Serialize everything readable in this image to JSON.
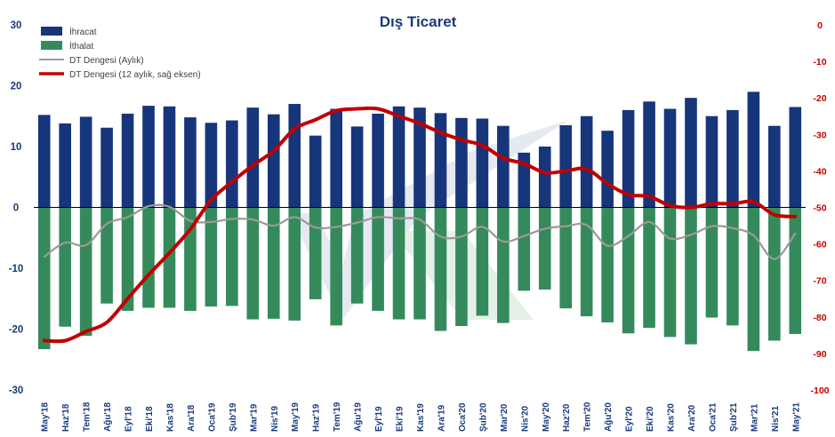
{
  "chart_data": {
    "type": "bar",
    "title": "Dış Ticaret",
    "categories": [
      "May'18",
      "Haz'18",
      "Tem'18",
      "Ağu'18",
      "Eyl'18",
      "Eki'18",
      "Kas'18",
      "Ara'18",
      "Oca'19",
      "Şub'19",
      "Mar'19",
      "Nis'19",
      "May'19",
      "Haz'19",
      "Tem'19",
      "Ağu'19",
      "Eyl'19",
      "Eki'19",
      "Kas'19",
      "Ara'19",
      "Oca'20",
      "Şub'20",
      "Mar'20",
      "Nis'20",
      "May'20",
      "Haz'20",
      "Tem'20",
      "Ağu'20",
      "Eyl'20",
      "Eki'20",
      "Kas'20",
      "Ara'20",
      "Oca'21",
      "Şub'21",
      "Mar'21",
      "Nis'21",
      "May'21"
    ],
    "series": [
      {
        "name": "İhracat",
        "axis": "left",
        "kind": "bar",
        "color": "#17357a",
        "values": [
          15.2,
          13.8,
          14.9,
          13.1,
          15.4,
          16.7,
          16.6,
          14.8,
          13.9,
          14.3,
          16.4,
          15.3,
          17.0,
          11.8,
          16.2,
          13.3,
          15.4,
          16.6,
          16.4,
          15.5,
          14.7,
          14.6,
          13.4,
          9.0,
          10.0,
          13.5,
          15.0,
          12.6,
          16.0,
          17.4,
          16.2,
          18.0,
          15.0,
          16.0,
          19.0,
          13.4,
          16.5
        ]
      },
      {
        "name": "İthalat",
        "axis": "left",
        "kind": "bar",
        "color": "#358a5c",
        "values": [
          -23.3,
          -19.6,
          -21.1,
          -15.8,
          -17.0,
          -16.5,
          -16.5,
          -17.0,
          -16.3,
          -16.2,
          -18.4,
          -18.3,
          -18.6,
          -15.1,
          -19.4,
          -15.8,
          -17.0,
          -18.4,
          -18.4,
          -20.3,
          -19.5,
          -17.8,
          -19.0,
          -13.7,
          -13.5,
          -16.6,
          -17.9,
          -18.9,
          -20.7,
          -19.8,
          -21.3,
          -22.5,
          -18.1,
          -19.4,
          -23.6,
          -21.9,
          -20.8
        ]
      },
      {
        "name": "DT Dengesi (Aylık)",
        "axis": "left",
        "kind": "line",
        "color": "#9a9a9a",
        "values": [
          -8.1,
          -5.8,
          -6.2,
          -2.7,
          -1.6,
          0.2,
          0.1,
          -2.2,
          -2.4,
          -1.9,
          -2.0,
          -3.0,
          -1.6,
          -3.3,
          -3.2,
          -2.5,
          -1.6,
          -1.8,
          -2.0,
          -4.8,
          -4.8,
          -3.2,
          -5.6,
          -4.7,
          -3.5,
          -3.1,
          -2.9,
          -6.3,
          -4.7,
          -2.4,
          -5.1,
          -4.5,
          -3.1,
          -3.4,
          -4.6,
          -8.5,
          -4.3
        ]
      },
      {
        "name": "DT Dengesi (12 aylık, sağ eksen)",
        "axis": "right",
        "kind": "line",
        "color": "#c00000",
        "values": [
          -86.5,
          -86.5,
          -84.0,
          -81.5,
          -75.0,
          -68.5,
          -62.5,
          -56.0,
          -48.0,
          -43.0,
          -38.5,
          -34.5,
          -28.5,
          -26.0,
          -23.5,
          -23.0,
          -23.0,
          -25.0,
          -27.0,
          -29.5,
          -31.5,
          -33.0,
          -36.5,
          -38.0,
          -40.5,
          -40.0,
          -39.5,
          -43.5,
          -46.5,
          -47.0,
          -49.5,
          -50.0,
          -49.0,
          -49.0,
          -48.5,
          -52.0,
          -52.5
        ]
      }
    ],
    "y_left": {
      "min": -30,
      "max": 30,
      "ticks": [
        30,
        20,
        10,
        0,
        -10,
        -20,
        -30
      ],
      "tick_color": "#1a3a7a"
    },
    "y_right": {
      "min": -100,
      "max": 0,
      "ticks": [
        0,
        -10,
        -20,
        -30,
        -40,
        -50,
        -60,
        -70,
        -80,
        -90,
        -100
      ],
      "tick_color": "#c00000"
    },
    "grid": false,
    "legend_position": "top-left",
    "watermark": "logo"
  }
}
